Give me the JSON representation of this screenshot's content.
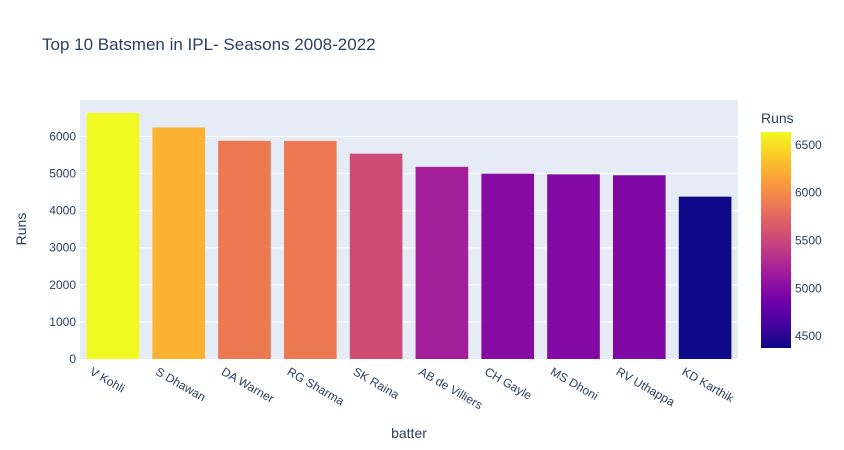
{
  "chart_data": {
    "type": "bar",
    "title": "Top 10 Batsmen in IPL- Seasons 2008-2022",
    "xlabel": "batter",
    "ylabel": "Runs",
    "categories": [
      "V Kohli",
      "S Dhawan",
      "DA Warner",
      "RG Sharma",
      "SK Raina",
      "AB de Villiers",
      "CH Gayle",
      "MS Dhoni",
      "RV Uthappa",
      "KD Karthik"
    ],
    "values": [
      6634,
      6244,
      5883,
      5881,
      5536,
      5181,
      4997,
      4978,
      4954,
      4377
    ],
    "ylim": [
      0,
      6983
    ],
    "yticks": [
      0,
      1000,
      2000,
      3000,
      4000,
      5000,
      6000
    ],
    "grid": true,
    "colorbar": {
      "title": "Runs",
      "range": [
        4377,
        6634
      ],
      "ticks": [
        4500,
        5000,
        5500,
        6000,
        6500
      ],
      "colorscale": [
        "#0d0887",
        "#46039f",
        "#7201a8",
        "#9c179e",
        "#bd3786",
        "#d8576b",
        "#ed7953",
        "#fb9f3a",
        "#fdca26",
        "#f0f921"
      ]
    },
    "colors": {
      "plot_bg": "#e5ecf6",
      "grid": "#ffffff",
      "text": "#2a3f5f"
    }
  }
}
